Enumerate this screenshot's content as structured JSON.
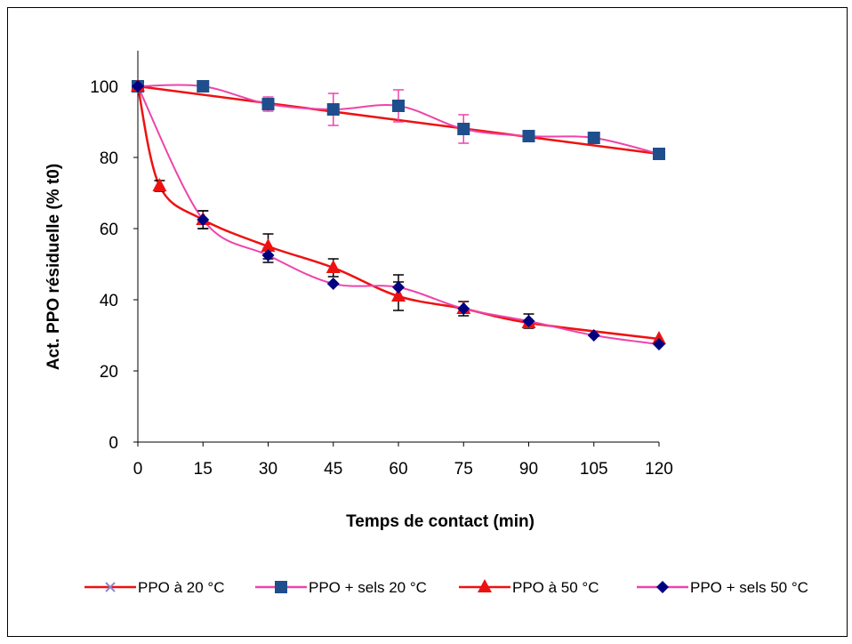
{
  "chart_data": {
    "type": "line",
    "xlabel": "Temps de contact (min)",
    "ylabel": "Act.  PPO résiduelle (% t0)",
    "xlim": [
      0,
      120
    ],
    "ylim": [
      0,
      110
    ],
    "xticks": [
      0,
      15,
      30,
      45,
      60,
      75,
      90,
      105,
      120
    ],
    "yticks": [
      0,
      20,
      40,
      60,
      80,
      100
    ],
    "grid": false,
    "legend_position": "bottom",
    "series": [
      {
        "name": "PPO à 20 °C",
        "style": "trend-straight",
        "marker": "x",
        "line_color": "#ee1111",
        "marker_color": "#8888cc",
        "x": [
          0,
          120
        ],
        "y": [
          100,
          81
        ],
        "errors": []
      },
      {
        "name": "PPO + sels 20 °C",
        "style": "smooth",
        "marker": "square",
        "line_color": "#ee44aa",
        "marker_color": "#1f4e8c",
        "x": [
          0,
          15,
          30,
          45,
          60,
          75,
          90,
          105,
          120
        ],
        "y": [
          100,
          100,
          95,
          93.5,
          94.5,
          88,
          86,
          85.5,
          81
        ],
        "errors": [
          0,
          0,
          2,
          4.5,
          4.5,
          4,
          0,
          0,
          0
        ]
      },
      {
        "name": "PPO à 50 °C",
        "style": "trend-smooth",
        "marker": "triangle",
        "line_color": "#ee1111",
        "marker_color": "#ee1111",
        "x": [
          0,
          5,
          15,
          30,
          45,
          60,
          75,
          90,
          120
        ],
        "y": [
          100,
          72,
          62.5,
          55,
          49,
          41,
          37.5,
          33.5,
          29
        ],
        "errors": [
          0,
          1.5,
          2.5,
          3.5,
          2.5,
          4,
          0,
          0,
          0
        ]
      },
      {
        "name": "PPO + sels 50 °C",
        "style": "smooth",
        "marker": "diamond",
        "line_color": "#ee44aa",
        "marker_color": "#000080",
        "x": [
          0,
          15,
          30,
          45,
          60,
          75,
          90,
          105,
          120
        ],
        "y": [
          100,
          62.5,
          52.5,
          44.5,
          43.5,
          37.5,
          34,
          30,
          27.5
        ],
        "errors": [
          0,
          2.5,
          2,
          0,
          3.5,
          2,
          2,
          0,
          0
        ]
      }
    ]
  }
}
